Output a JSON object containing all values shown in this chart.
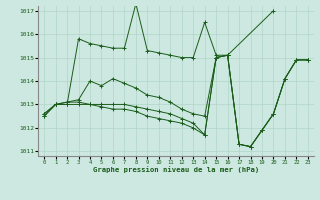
{
  "xlabel": "Graphe pression niveau de la mer (hPa)",
  "xlim": [
    -0.5,
    23.5
  ],
  "ylim": [
    1010.8,
    1017.2
  ],
  "yticks": [
    1011,
    1012,
    1013,
    1014,
    1015,
    1016,
    1017
  ],
  "xticks": [
    0,
    1,
    2,
    3,
    4,
    5,
    6,
    7,
    8,
    9,
    10,
    11,
    12,
    13,
    14,
    15,
    16,
    17,
    18,
    19,
    20,
    21,
    22,
    23
  ],
  "bg_color": "#cce8e0",
  "line_color": "#1a5c1a",
  "grid_color": "#b0d4c8",
  "curves": [
    {
      "x": [
        0,
        1,
        2,
        3,
        4,
        5,
        6,
        7,
        8,
        9,
        10,
        11,
        12,
        13,
        14,
        15,
        16,
        20
      ],
      "y": [
        1012.6,
        1013.0,
        1013.0,
        1015.8,
        1015.6,
        1015.5,
        1015.4,
        1015.4,
        1017.3,
        1015.3,
        1015.2,
        1015.1,
        1015.0,
        1015.0,
        1016.5,
        1015.1,
        1015.1,
        1017.0
      ]
    },
    {
      "x": [
        0,
        1,
        2,
        3,
        4,
        5,
        6,
        7,
        8,
        9,
        10,
        11,
        12,
        13,
        14,
        15,
        16,
        17,
        18,
        19,
        20,
        21,
        22,
        23
      ],
      "y": [
        1012.6,
        1013.0,
        1013.1,
        1013.2,
        1014.0,
        1013.8,
        1014.1,
        1013.9,
        1013.7,
        1013.4,
        1013.3,
        1013.1,
        1012.8,
        1012.6,
        1012.5,
        1015.0,
        1015.1,
        1011.3,
        1011.2,
        1011.9,
        1012.6,
        1014.1,
        1014.9,
        1014.9
      ]
    },
    {
      "x": [
        0,
        1,
        2,
        3,
        4,
        5,
        6,
        7,
        8,
        9,
        10,
        11,
        12,
        13,
        14,
        15,
        16,
        17,
        18,
        19,
        20,
        21,
        22,
        23
      ],
      "y": [
        1012.5,
        1013.0,
        1013.1,
        1013.1,
        1013.0,
        1013.0,
        1013.0,
        1013.0,
        1012.9,
        1012.8,
        1012.7,
        1012.6,
        1012.4,
        1012.2,
        1011.7,
        1015.0,
        1015.1,
        1011.3,
        1011.2,
        1011.9,
        1012.6,
        1014.1,
        1014.9,
        1014.9
      ]
    },
    {
      "x": [
        0,
        1,
        2,
        3,
        4,
        5,
        6,
        7,
        8,
        9,
        10,
        11,
        12,
        13,
        14,
        15,
        16,
        17,
        18,
        19,
        20,
        21,
        22,
        23
      ],
      "y": [
        1012.5,
        1013.0,
        1013.0,
        1013.0,
        1013.0,
        1012.9,
        1012.8,
        1012.8,
        1012.7,
        1012.5,
        1012.4,
        1012.3,
        1012.2,
        1012.0,
        1011.7,
        1015.0,
        1015.1,
        1011.3,
        1011.2,
        1011.9,
        1012.6,
        1014.1,
        1014.9,
        1014.9
      ]
    }
  ]
}
